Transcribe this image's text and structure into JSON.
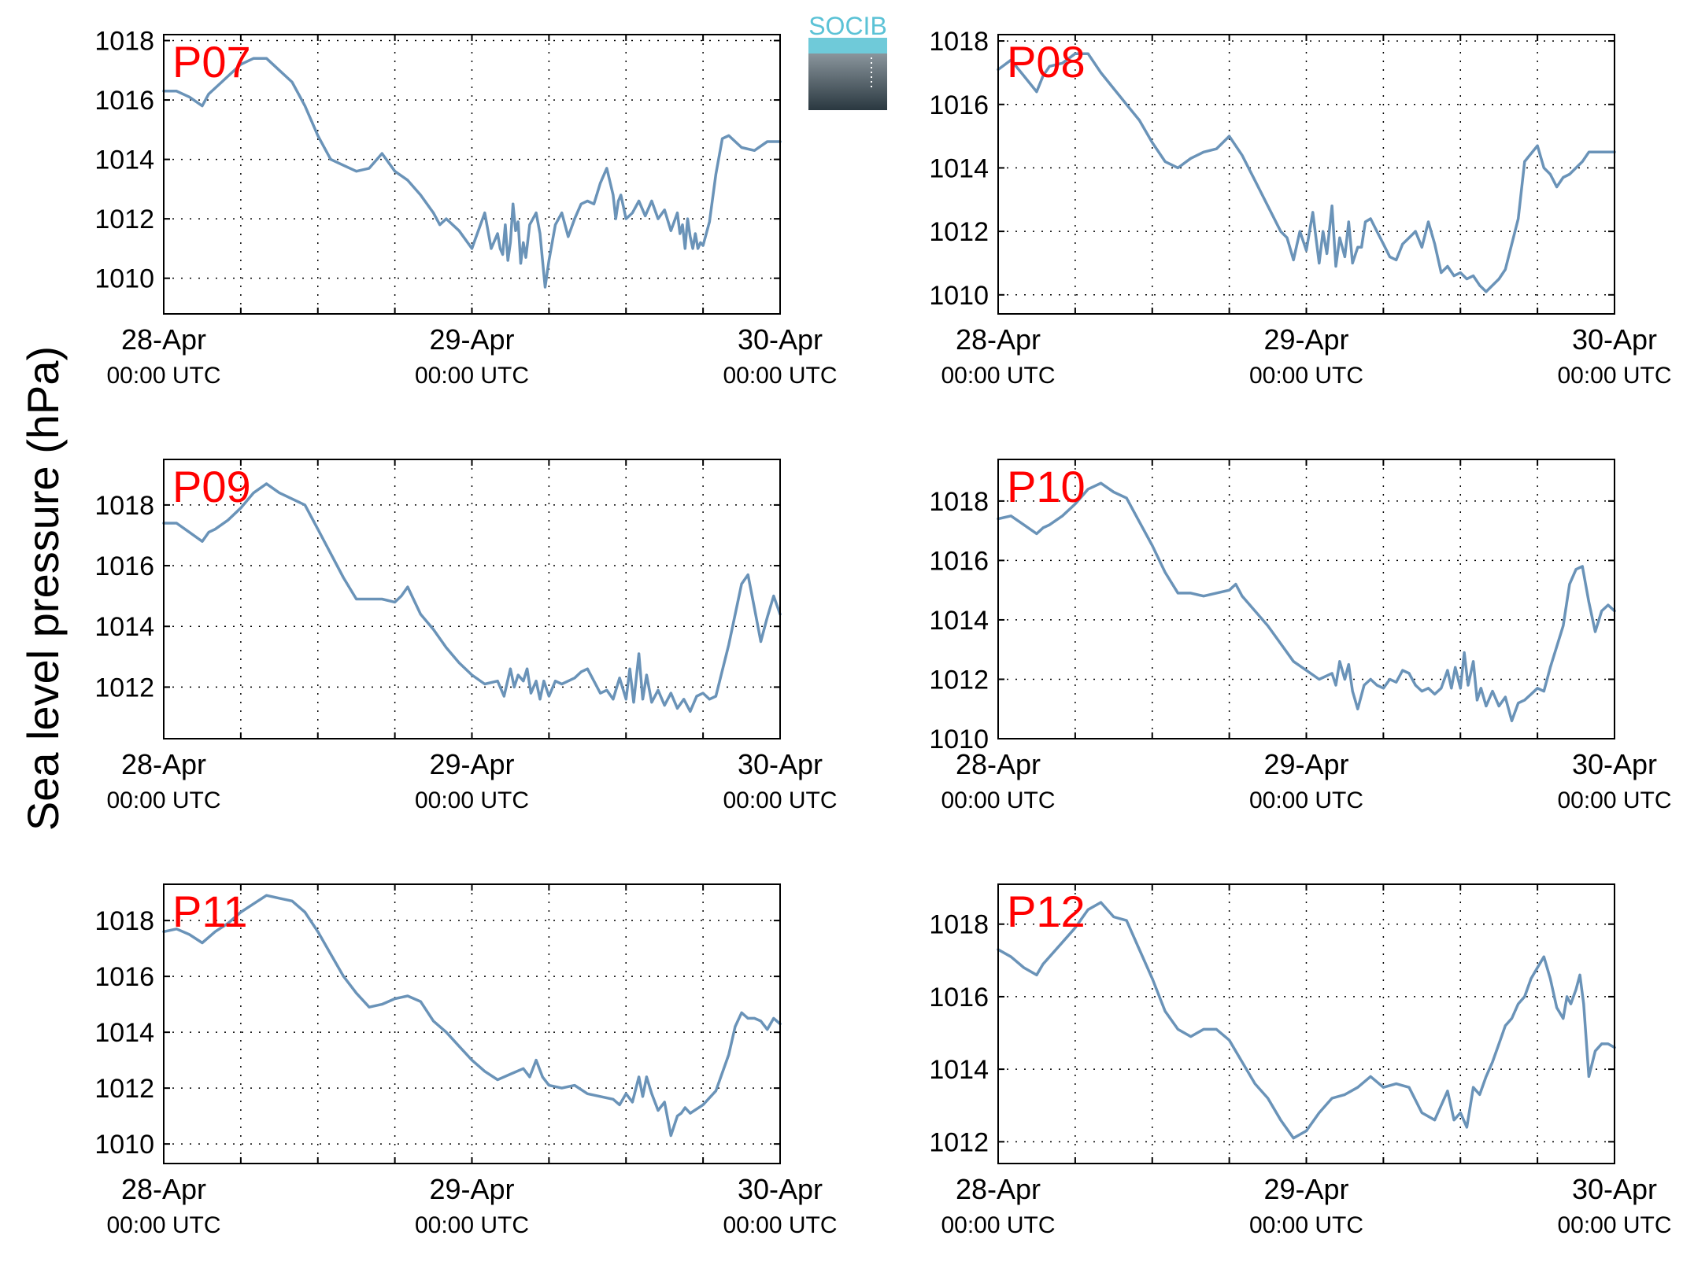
{
  "figure": {
    "ylabel": "Sea level pressure (hPa)",
    "logo_text": "SOCIB",
    "line_color": "#6a93b8",
    "panel_label_color": "#ff0000"
  },
  "chart_data": [
    {
      "type": "line",
      "panel": "P07",
      "xlim": [
        0,
        48
      ],
      "ylim": [
        1008.8,
        1018.2
      ],
      "yticks": [
        1010,
        1012,
        1014,
        1016,
        1018
      ],
      "xticks": [
        0,
        24,
        48
      ],
      "xticklabels": [
        [
          "28-Apr",
          "00:00 UTC"
        ],
        [
          "29-Apr",
          "00:00 UTC"
        ],
        [
          "30-Apr",
          "00:00 UTC"
        ]
      ],
      "grid": true,
      "x": [
        0,
        1,
        2,
        3,
        3.5,
        4,
        5,
        6,
        7,
        8,
        9,
        9.5,
        10,
        11,
        12,
        13,
        14,
        15,
        16,
        17,
        18,
        19,
        20,
        21,
        21.5,
        22,
        23,
        24,
        25,
        25.5,
        26,
        26.2,
        26.4,
        26.6,
        26.8,
        27,
        27.2,
        27.4,
        27.6,
        27.8,
        28,
        28.2,
        28.5,
        29,
        29.3,
        29.5,
        29.7,
        30,
        30.5,
        31,
        31.5,
        32,
        32.5,
        33,
        33.5,
        34,
        34.5,
        35,
        35.2,
        35.4,
        35.6,
        36,
        36.5,
        37,
        37.5,
        38,
        38.5,
        39,
        39.5,
        40,
        40.2,
        40.4,
        40.6,
        40.8,
        41,
        41.2,
        41.4,
        41.6,
        41.8,
        42,
        42.5,
        43,
        43.5,
        44,
        45,
        46,
        47,
        48
      ],
      "y": [
        1016.3,
        1016.3,
        1016.1,
        1015.8,
        1016.2,
        1016.4,
        1016.8,
        1017.2,
        1017.4,
        1017.4,
        1017.0,
        1016.8,
        1016.6,
        1015.8,
        1014.8,
        1014.0,
        1013.8,
        1013.6,
        1013.7,
        1014.2,
        1013.6,
        1013.3,
        1012.8,
        1012.2,
        1011.8,
        1012.0,
        1011.6,
        1011.0,
        1012.2,
        1011.0,
        1011.5,
        1011.0,
        1010.8,
        1011.8,
        1010.6,
        1011.2,
        1012.5,
        1011.6,
        1011.9,
        1010.5,
        1011.2,
        1010.7,
        1011.8,
        1012.2,
        1011.5,
        1010.6,
        1009.7,
        1010.6,
        1011.8,
        1012.2,
        1011.4,
        1012.0,
        1012.5,
        1012.6,
        1012.5,
        1013.2,
        1013.7,
        1012.8,
        1012.0,
        1012.6,
        1012.8,
        1012.0,
        1012.2,
        1012.6,
        1012.1,
        1012.6,
        1012.0,
        1012.3,
        1011.6,
        1012.2,
        1011.5,
        1011.8,
        1011.0,
        1012.0,
        1011.4,
        1011.0,
        1011.5,
        1011.0,
        1011.2,
        1011.1,
        1011.9,
        1013.5,
        1014.7,
        1014.8,
        1014.4,
        1014.3,
        1014.6,
        1014.6
      ]
    },
    {
      "type": "line",
      "panel": "P08",
      "xlim": [
        0,
        48
      ],
      "ylim": [
        1009.4,
        1018.2
      ],
      "yticks": [
        1010,
        1012,
        1014,
        1016,
        1018
      ],
      "xticks": [
        0,
        24,
        48
      ],
      "xticklabels": [
        [
          "28-Apr",
          "00:00 UTC"
        ],
        [
          "29-Apr",
          "00:00 UTC"
        ],
        [
          "30-Apr",
          "00:00 UTC"
        ]
      ],
      "grid": true,
      "x": [
        0,
        1,
        2,
        3,
        3.5,
        4,
        5,
        6,
        7,
        8,
        9,
        10,
        11,
        12,
        13,
        14,
        15,
        16,
        17,
        18,
        19,
        20,
        21,
        22,
        22.5,
        23,
        23.5,
        24,
        24.5,
        25,
        25.3,
        25.6,
        26,
        26.3,
        26.6,
        27,
        27.3,
        27.6,
        28,
        28.3,
        28.6,
        29,
        29.5,
        30,
        30.5,
        31,
        31.5,
        32,
        32.5,
        33,
        33.5,
        34,
        34.5,
        35,
        35.5,
        36,
        36.5,
        37,
        37.5,
        38,
        39,
        39.5,
        40,
        40.5,
        41,
        42,
        42.5,
        43,
        43.5,
        44,
        44.5,
        45,
        45.5,
        46,
        47,
        48
      ],
      "y": [
        1017.1,
        1017.4,
        1016.9,
        1016.4,
        1016.9,
        1017.2,
        1017.3,
        1017.6,
        1017.6,
        1017.0,
        1016.5,
        1016.0,
        1015.5,
        1014.8,
        1014.2,
        1014.0,
        1014.3,
        1014.5,
        1014.6,
        1015.0,
        1014.4,
        1013.6,
        1012.8,
        1012.0,
        1011.8,
        1011.1,
        1012.0,
        1011.4,
        1012.6,
        1011.0,
        1012.0,
        1011.3,
        1012.8,
        1010.9,
        1011.8,
        1011.2,
        1012.3,
        1011.0,
        1011.5,
        1011.5,
        1012.3,
        1012.4,
        1012.0,
        1011.6,
        1011.2,
        1011.1,
        1011.6,
        1011.8,
        1012.0,
        1011.5,
        1012.3,
        1011.6,
        1010.7,
        1010.9,
        1010.6,
        1010.7,
        1010.5,
        1010.6,
        1010.3,
        1010.1,
        1010.5,
        1010.8,
        1011.6,
        1012.4,
        1014.2,
        1014.7,
        1014.0,
        1013.8,
        1013.4,
        1013.7,
        1013.8,
        1014.0,
        1014.2,
        1014.5,
        1014.5,
        1014.5
      ]
    },
    {
      "type": "line",
      "panel": "P09",
      "xlim": [
        0,
        48
      ],
      "ylim": [
        1010.3,
        1019.5
      ],
      "yticks": [
        1012,
        1014,
        1016,
        1018
      ],
      "xticks": [
        0,
        24,
        48
      ],
      "xticklabels": [
        [
          "28-Apr",
          "00:00 UTC"
        ],
        [
          "29-Apr",
          "00:00 UTC"
        ],
        [
          "30-Apr",
          "00:00 UTC"
        ]
      ],
      "grid": true,
      "x": [
        0,
        1,
        2,
        3,
        3.5,
        4,
        5,
        6,
        7,
        8,
        9,
        9.5,
        10,
        11,
        12,
        13,
        14,
        15,
        16,
        17,
        18,
        18.5,
        19,
        20,
        21,
        22,
        23,
        24,
        25,
        26,
        26.5,
        27,
        27.3,
        27.6,
        28,
        28.3,
        28.6,
        29,
        29.3,
        29.6,
        30,
        30.5,
        31,
        31.5,
        32,
        32.5,
        33,
        33.5,
        34,
        34.5,
        35,
        35.5,
        36,
        36.3,
        36.6,
        37,
        37.3,
        37.6,
        38,
        38.5,
        39,
        39.5,
        40,
        40.5,
        41,
        41.5,
        42,
        42.5,
        43,
        44,
        45,
        45.5,
        46,
        46.5,
        47,
        47.5,
        48
      ],
      "y": [
        1017.4,
        1017.4,
        1017.1,
        1016.8,
        1017.1,
        1017.2,
        1017.5,
        1017.9,
        1018.4,
        1018.7,
        1018.4,
        1018.3,
        1018.2,
        1018.0,
        1017.2,
        1016.4,
        1015.6,
        1014.9,
        1014.9,
        1014.9,
        1014.8,
        1015.0,
        1015.3,
        1014.4,
        1013.9,
        1013.3,
        1012.8,
        1012.4,
        1012.1,
        1012.2,
        1011.7,
        1012.6,
        1012.0,
        1012.4,
        1012.2,
        1012.6,
        1011.8,
        1012.2,
        1011.6,
        1012.2,
        1011.7,
        1012.2,
        1012.1,
        1012.2,
        1012.3,
        1012.5,
        1012.6,
        1012.2,
        1011.8,
        1011.9,
        1011.6,
        1012.3,
        1011.6,
        1012.6,
        1011.5,
        1013.1,
        1011.6,
        1012.4,
        1011.5,
        1011.9,
        1011.4,
        1011.8,
        1011.3,
        1011.6,
        1011.2,
        1011.7,
        1011.8,
        1011.6,
        1011.7,
        1013.4,
        1015.4,
        1015.7,
        1014.6,
        1013.5,
        1014.3,
        1015.0,
        1014.4
      ]
    },
    {
      "type": "line",
      "panel": "P10",
      "xlim": [
        0,
        48
      ],
      "ylim": [
        1010.0,
        1019.4
      ],
      "yticks": [
        1010,
        1012,
        1014,
        1016,
        1018
      ],
      "xticks": [
        0,
        24,
        48
      ],
      "xticklabels": [
        [
          "28-Apr",
          "00:00 UTC"
        ],
        [
          "29-Apr",
          "00:00 UTC"
        ],
        [
          "30-Apr",
          "00:00 UTC"
        ]
      ],
      "grid": true,
      "x": [
        0,
        1,
        2,
        3,
        3.5,
        4,
        5,
        6,
        7,
        8,
        9,
        10,
        11,
        12,
        13,
        14,
        15,
        16,
        17,
        18,
        18.5,
        19,
        20,
        21,
        22,
        23,
        24,
        25,
        26,
        26.3,
        26.6,
        27,
        27.3,
        27.6,
        28,
        28.5,
        29,
        29.5,
        30,
        30.5,
        31,
        31.5,
        32,
        32.5,
        33,
        33.5,
        34,
        34.5,
        35,
        35.3,
        35.6,
        36,
        36.3,
        36.6,
        37,
        37.3,
        37.6,
        38,
        38.5,
        39,
        39.5,
        40,
        40.5,
        41,
        41.5,
        42,
        42.5,
        43,
        44,
        44.5,
        45,
        45.5,
        46,
        46.5,
        47,
        47.5,
        48
      ],
      "y": [
        1017.4,
        1017.5,
        1017.2,
        1016.9,
        1017.1,
        1017.2,
        1017.5,
        1017.9,
        1018.4,
        1018.6,
        1018.3,
        1018.1,
        1017.3,
        1016.5,
        1015.6,
        1014.9,
        1014.9,
        1014.8,
        1014.9,
        1015.0,
        1015.2,
        1014.8,
        1014.3,
        1013.8,
        1013.2,
        1012.6,
        1012.3,
        1012.0,
        1012.2,
        1011.8,
        1012.6,
        1012.0,
        1012.5,
        1011.6,
        1011.0,
        1011.8,
        1012.0,
        1011.8,
        1011.7,
        1012.0,
        1011.9,
        1012.3,
        1012.2,
        1011.8,
        1011.6,
        1011.7,
        1011.5,
        1011.7,
        1012.3,
        1011.7,
        1012.4,
        1011.7,
        1012.9,
        1011.8,
        1012.6,
        1011.3,
        1011.7,
        1011.1,
        1011.6,
        1011.1,
        1011.4,
        1010.6,
        1011.2,
        1011.3,
        1011.5,
        1011.7,
        1011.6,
        1012.4,
        1013.8,
        1015.2,
        1015.7,
        1015.8,
        1014.6,
        1013.6,
        1014.3,
        1014.5,
        1014.3
      ]
    },
    {
      "type": "line",
      "panel": "P11",
      "xlim": [
        0,
        48
      ],
      "ylim": [
        1009.3,
        1019.3
      ],
      "yticks": [
        1010,
        1012,
        1014,
        1016,
        1018
      ],
      "xticks": [
        0,
        24,
        48
      ],
      "xticklabels": [
        [
          "28-Apr",
          "00:00 UTC"
        ],
        [
          "29-Apr",
          "00:00 UTC"
        ],
        [
          "30-Apr",
          "00:00 UTC"
        ]
      ],
      "grid": true,
      "x": [
        0,
        1,
        2,
        3,
        3.5,
        4,
        5,
        6,
        7,
        8,
        9,
        10,
        11,
        12,
        13,
        14,
        15,
        16,
        17,
        18,
        19,
        20,
        21,
        22,
        23,
        24,
        25,
        26,
        27,
        28,
        28.5,
        29,
        29.5,
        30,
        31,
        32,
        33,
        34,
        35,
        35.5,
        36,
        36.5,
        37,
        37.3,
        37.6,
        38,
        38.5,
        39,
        39.5,
        40,
        40.3,
        40.6,
        41,
        42,
        43,
        44,
        44.5,
        45,
        45.5,
        46,
        46.5,
        47,
        47.5,
        48
      ],
      "y": [
        1017.6,
        1017.7,
        1017.5,
        1017.2,
        1017.4,
        1017.6,
        1017.9,
        1018.3,
        1018.6,
        1018.9,
        1018.8,
        1018.7,
        1018.3,
        1017.6,
        1016.8,
        1016.0,
        1015.4,
        1014.9,
        1015.0,
        1015.2,
        1015.3,
        1015.1,
        1014.4,
        1014.0,
        1013.5,
        1013.0,
        1012.6,
        1012.3,
        1012.5,
        1012.7,
        1012.4,
        1013.0,
        1012.4,
        1012.1,
        1012.0,
        1012.1,
        1011.8,
        1011.7,
        1011.6,
        1011.4,
        1011.8,
        1011.5,
        1012.4,
        1011.7,
        1012.4,
        1011.8,
        1011.2,
        1011.5,
        1010.3,
        1011.0,
        1011.1,
        1011.3,
        1011.1,
        1011.4,
        1011.9,
        1013.2,
        1014.2,
        1014.7,
        1014.5,
        1014.5,
        1014.4,
        1014.1,
        1014.5,
        1014.3
      ]
    },
    {
      "type": "line",
      "panel": "P12",
      "xlim": [
        0,
        48
      ],
      "ylim": [
        1011.4,
        1019.1
      ],
      "yticks": [
        1012,
        1014,
        1016,
        1018
      ],
      "xticks": [
        0,
        24,
        48
      ],
      "xticklabels": [
        [
          "28-Apr",
          "00:00 UTC"
        ],
        [
          "29-Apr",
          "00:00 UTC"
        ],
        [
          "30-Apr",
          "00:00 UTC"
        ]
      ],
      "grid": true,
      "x": [
        0,
        1,
        2,
        3,
        3.5,
        4,
        5,
        6,
        7,
        8,
        9,
        10,
        11,
        12,
        13,
        14,
        15,
        16,
        17,
        18,
        19,
        20,
        21,
        22,
        23,
        24,
        25,
        26,
        27,
        28,
        29,
        30,
        31,
        32,
        33,
        34,
        35,
        35.5,
        36,
        36.5,
        37,
        37.5,
        38,
        38.5,
        39,
        39.5,
        40,
        40.5,
        41,
        41.5,
        42,
        42.5,
        43,
        43.5,
        44,
        44.3,
        44.6,
        45,
        45.3,
        45.6,
        46,
        46.5,
        47,
        47.5,
        48
      ],
      "y": [
        1017.3,
        1017.1,
        1016.8,
        1016.6,
        1016.9,
        1017.1,
        1017.5,
        1017.9,
        1018.4,
        1018.6,
        1018.2,
        1018.1,
        1017.3,
        1016.5,
        1015.6,
        1015.1,
        1014.9,
        1015.1,
        1015.1,
        1014.8,
        1014.2,
        1013.6,
        1013.2,
        1012.6,
        1012.1,
        1012.3,
        1012.8,
        1013.2,
        1013.3,
        1013.5,
        1013.8,
        1013.5,
        1013.6,
        1013.5,
        1012.8,
        1012.6,
        1013.4,
        1012.6,
        1012.8,
        1012.4,
        1013.5,
        1013.3,
        1013.8,
        1014.2,
        1014.7,
        1015.2,
        1015.4,
        1015.8,
        1016.0,
        1016.5,
        1016.8,
        1017.1,
        1016.5,
        1015.7,
        1015.4,
        1016.0,
        1015.8,
        1016.2,
        1016.6,
        1015.8,
        1013.8,
        1014.5,
        1014.7,
        1014.7,
        1014.6
      ]
    }
  ]
}
